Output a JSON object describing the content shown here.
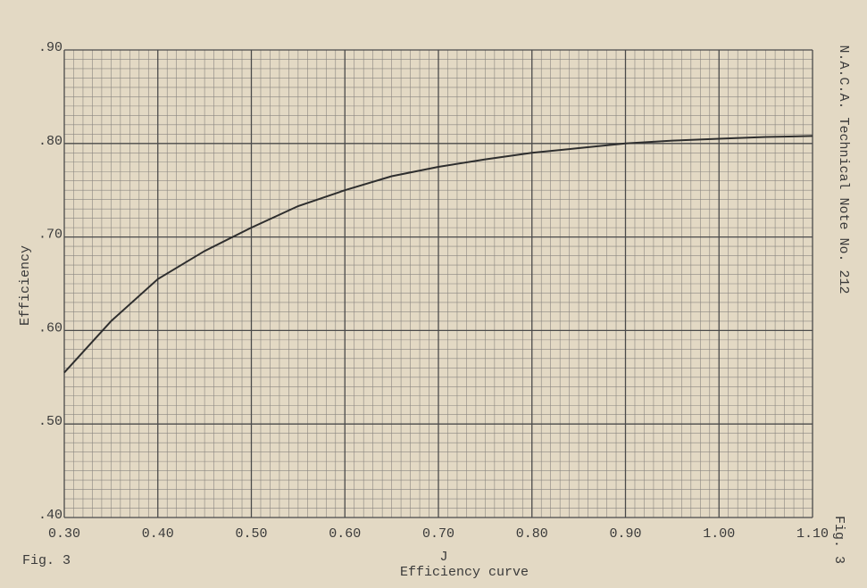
{
  "chart_data": {
    "type": "line",
    "side_note": "N.A.C.A. Technical Note No. 212",
    "figure_label": "Fig. 3",
    "figure_label_right": "Fig. 3",
    "title": "Efficiency curve",
    "x_label": "J",
    "y_label": "Efficiency",
    "x": [
      0.3,
      0.35,
      0.4,
      0.45,
      0.5,
      0.55,
      0.6,
      0.65,
      0.7,
      0.75,
      0.8,
      0.85,
      0.9,
      0.95,
      1.0,
      1.05,
      1.1
    ],
    "series": [
      {
        "color": "#2e2e2e",
        "values": [
          0.555,
          0.61,
          0.655,
          0.685,
          0.71,
          0.733,
          0.75,
          0.765,
          0.775,
          0.783,
          0.79,
          0.795,
          0.8,
          0.803,
          0.805,
          0.807,
          0.808
        ]
      }
    ],
    "xlim": [
      0.3,
      1.1
    ],
    "ylim": [
      0.4,
      0.9
    ],
    "xticks": [
      {
        "value": 0.3,
        "label": "0.30"
      },
      {
        "value": 0.4,
        "label": "0.40"
      },
      {
        "value": 0.5,
        "label": "0.50"
      },
      {
        "value": 0.6,
        "label": "0.60"
      },
      {
        "value": 0.7,
        "label": "0.70"
      },
      {
        "value": 0.8,
        "label": "0.80"
      },
      {
        "value": 0.9,
        "label": "0.90"
      },
      {
        "value": 1.0,
        "label": "1.00"
      },
      {
        "value": 1.1,
        "label": "1.10"
      }
    ],
    "yticks": [
      {
        "value": 0.4,
        "label": ".40"
      },
      {
        "value": 0.5,
        "label": ".50"
      },
      {
        "value": 0.6,
        "label": ".60"
      },
      {
        "value": 0.7,
        "label": ".70"
      },
      {
        "value": 0.8,
        "label": ".80"
      },
      {
        "value": 0.9,
        "label": ".90"
      }
    ],
    "grid": true
  }
}
